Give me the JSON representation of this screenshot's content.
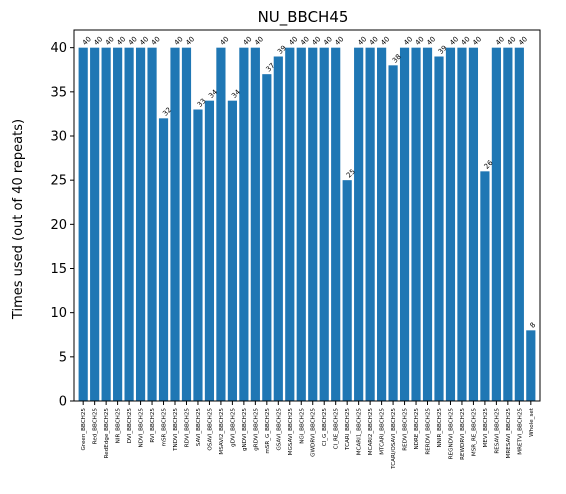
{
  "chart_data": {
    "type": "bar",
    "title": "NU_BBCH45",
    "xlabel": "",
    "ylabel": "Times used (out of 40 repeats)",
    "ylim": [
      0,
      42
    ],
    "yticks": [
      0,
      5,
      10,
      15,
      20,
      25,
      30,
      35,
      40
    ],
    "grid": false,
    "bar_color": "#1f77b4",
    "categories": [
      "Green_BBCH25",
      "Red_BBCH25",
      "RedEdge_BBCH25",
      "NIR_BBCH25",
      "DVI_BBCH25",
      "NDVI_BBCH25",
      "RVI_BBCH25",
      "mSR_BBCH25",
      "TNDVI_BBCH25",
      "RDVI_BBCH25",
      "SAVI_BBCH25",
      "OSAVI_BBCH25",
      "MSAVI2_BBCH25",
      "gDVI_BBCH25",
      "gNDVI_BBCH25",
      "gRDVI_BBCH25",
      "mSR_G_BBCH25",
      "GSAVI_BBCH25",
      "MGSAVI_BBCH25",
      "NGI_BBCH25",
      "GWDRVI_BBCH25",
      "CI_G_BBCH25",
      "CI_RE_BBCH25",
      "TCARI_BBCH25",
      "MCARI1_BBCH25",
      "MCARI2_BBCH25",
      "MTCARI_BBCH25",
      "TCARI/OSAVI_BBCH25",
      "REDVI_BBCH25",
      "NDRE_BBCH25",
      "RERDVI_BBCH25",
      "NNIR_BBCH25",
      "REGNDVI_BBCH25",
      "REWDRVI_BBCH25",
      "MSR_RE_BBCH25",
      "MEVI_BBCH25",
      "RESAVI_BBCH25",
      "MRESAVI_BBCH25",
      "MRETVI_BBCH25",
      "Whole_set"
    ],
    "values": [
      40,
      40,
      40,
      40,
      40,
      40,
      40,
      32,
      40,
      40,
      33,
      34,
      40,
      34,
      40,
      40,
      37,
      39,
      40,
      40,
      40,
      40,
      40,
      25,
      40,
      40,
      40,
      38,
      40,
      40,
      40,
      39,
      40,
      40,
      40,
      26,
      40,
      40,
      40,
      8
    ]
  }
}
